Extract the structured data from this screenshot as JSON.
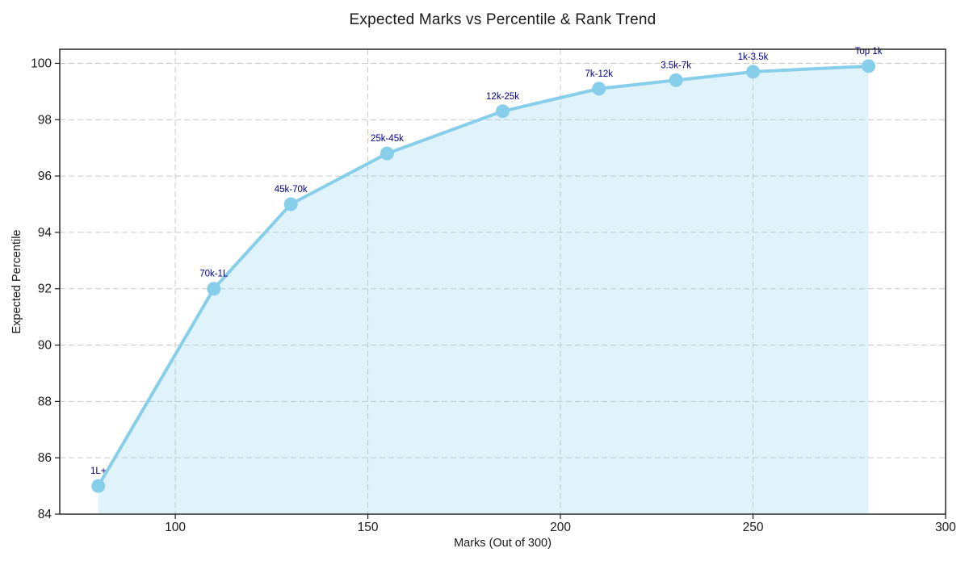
{
  "chart_data": {
    "type": "line",
    "title": "Expected Marks vs Percentile & Rank Trend",
    "xlabel": "Marks (Out of 300)",
    "ylabel": "Expected Percentile",
    "x": [
      80,
      110,
      130,
      155,
      185,
      210,
      230,
      250,
      280
    ],
    "y": [
      85,
      92,
      95,
      96.8,
      98.3,
      99.1,
      99.4,
      99.7,
      99.9
    ],
    "point_labels": [
      "1L+",
      "70k-1L",
      "45k-70k",
      "25k-45k",
      "12k-25k",
      "7k-12k",
      "3.5k-7k",
      "1k-3.5k",
      "Top 1k"
    ],
    "xticks": [
      100,
      150,
      200,
      250,
      300
    ],
    "yticks": [
      84,
      86,
      88,
      90,
      92,
      94,
      96,
      98,
      100
    ],
    "xlim": [
      70,
      300
    ],
    "ylim": [
      84,
      100.5
    ],
    "grid": true,
    "grid_style": "dashed",
    "area_fill": true,
    "legend": "none",
    "colors": {
      "line": "#87CEEB",
      "marker": "#87CEEB",
      "fill": "#87CEEB",
      "fill_opacity": 0.25,
      "annotation": "#00008B",
      "grid": "#c9c9c9",
      "axis": "#1a1a1a",
      "text": "#1a1a1a",
      "background": "#ffffff"
    }
  }
}
